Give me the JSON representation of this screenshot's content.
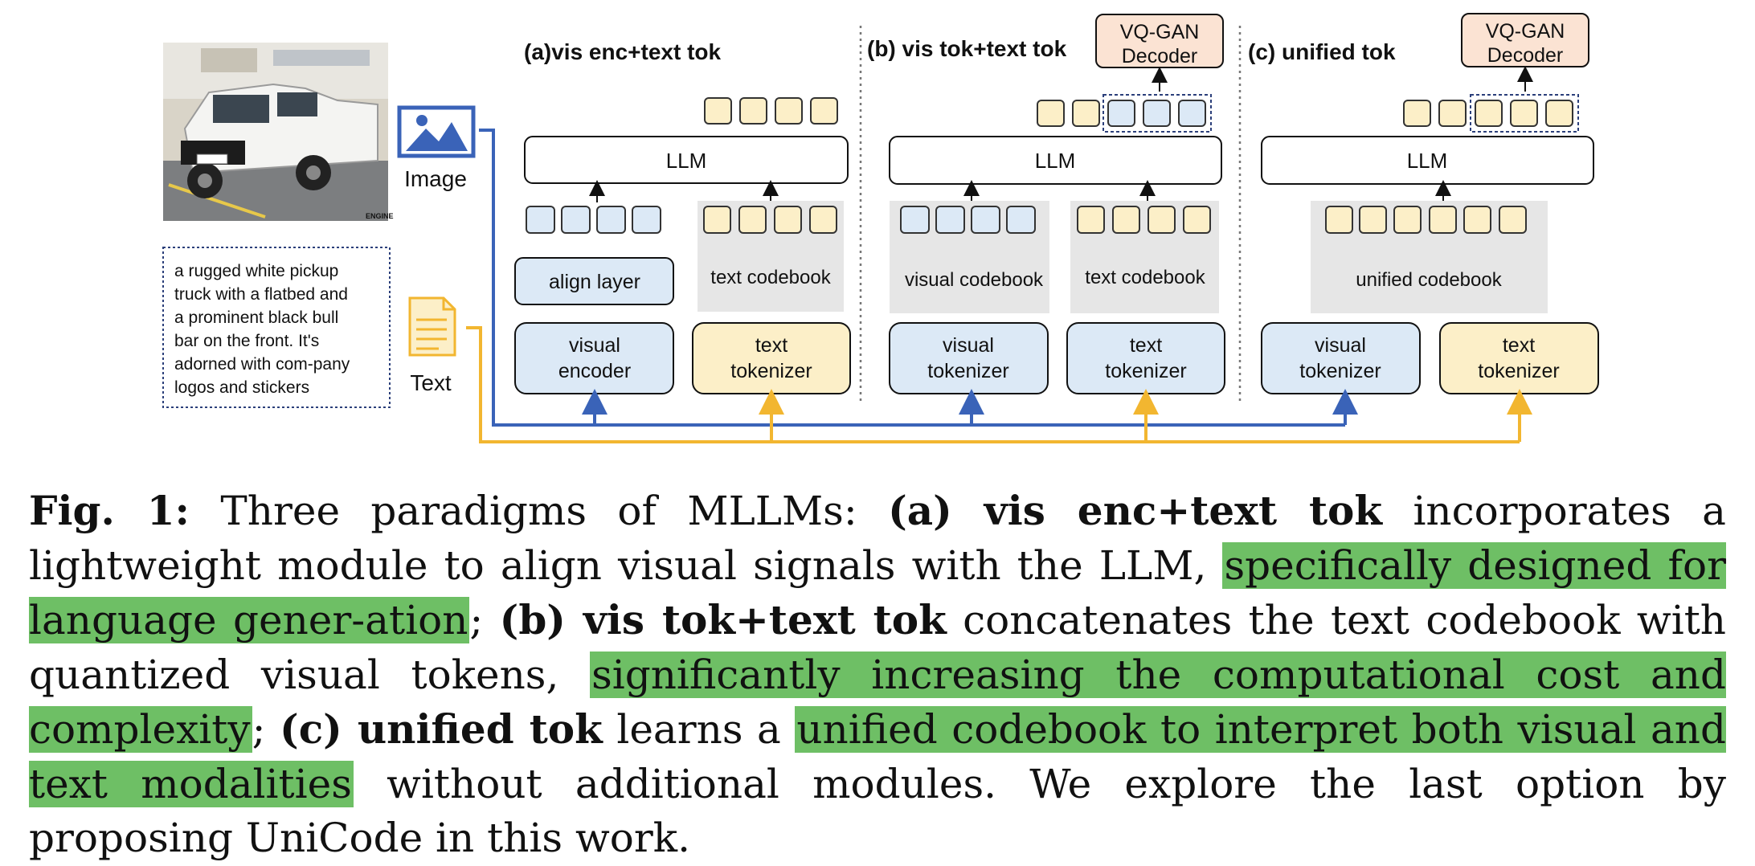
{
  "figure": {
    "image_label": "Image",
    "text_label": "Text",
    "sample_text_lines": [
      "a rugged white pickup",
      "truck with a flatbed and",
      "a prominent black bull",
      "bar on the front. It's",
      "adorned with com-pany",
      "logos and stickers"
    ],
    "photo_watermark": "ENGINE",
    "panels": {
      "a": {
        "title": "(a)vis enc+text tok",
        "llm": "LLM",
        "align_layer": "align layer",
        "codebook": "text codebook",
        "visual_box": [
          "visual",
          "encoder"
        ],
        "text_box": [
          "text",
          "tokenizer"
        ]
      },
      "b": {
        "title": "(b) vis tok+text tok",
        "llm": "LLM",
        "decoder": [
          "VQ-GAN",
          "Decoder"
        ],
        "visual_codebook": "visual codebook",
        "text_codebook": "text codebook",
        "visual_box": [
          "visual",
          "tokenizer"
        ],
        "text_box": [
          "text",
          "tokenizer"
        ]
      },
      "c": {
        "title": "(c) unified tok",
        "llm": "LLM",
        "decoder": [
          "VQ-GAN",
          "Decoder"
        ],
        "codebook": "unified codebook",
        "visual_box": [
          "visual",
          "tokenizer"
        ],
        "text_box": [
          "text",
          "tokenizer"
        ]
      }
    }
  },
  "caption": {
    "fig_label": "Fig. 1:",
    "t1": " Three paradigms of MLLMs: ",
    "a_label": "(a) vis enc+text tok",
    "t2": " incorporates a lightweight module to align visual signals with the LLM, ",
    "h1": "specifically designed for language gener-ation",
    "t3": "; ",
    "b_label": "(b) vis tok+text tok",
    "t4": " concatenates the text codebook with quantized visual tokens, ",
    "h2": "significantly increasing the computational cost and complexity",
    "t5": "; ",
    "c_label": "(c) unified tok",
    "t6": " learns a ",
    "h3": "unified codebook to interpret both visual and text modalities",
    "t7": " without additional modules. We explore the last option by proposing UniCode in this work."
  },
  "colors": {
    "visual_fill": "#dce9f6",
    "text_fill": "#fcefc8",
    "decoder_fill": "#fbe3d3",
    "codebook_gray": "#e6e6e6",
    "blue_line": "#3a63b8",
    "yellow_line": "#f2b630",
    "highlight": "#6ebf65"
  }
}
